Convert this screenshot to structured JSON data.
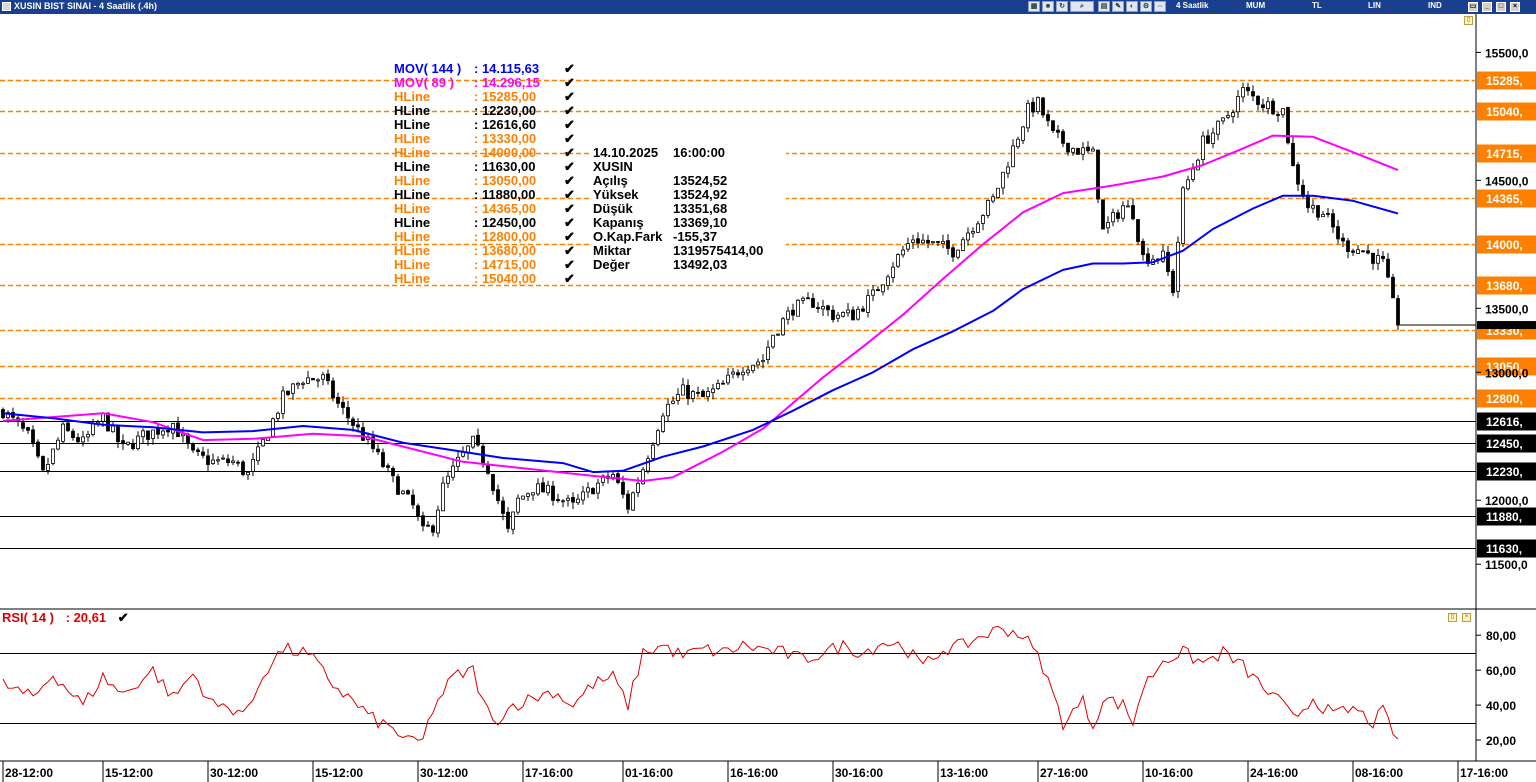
{
  "window": {
    "title": "XUSIN BIST SINAI - 4 Saatlik (.4h)",
    "toolbar": {
      "period": "4 Saatlik",
      "chart_type": "MUM",
      "currency": "TL",
      "scale": "LIN",
      "mode": "IND"
    }
  },
  "main_legend": [
    {
      "name": "MOV( 144 )",
      "value": ": 14.115,63",
      "color": "#0000ff"
    },
    {
      "name": "MOV( 89 )",
      "value": ": 14.296,15",
      "color": "#ff00ff"
    },
    {
      "name": "HLine",
      "value": ": 15285,00",
      "color": "#ff8000"
    },
    {
      "name": "HLine",
      "value": ": 12230,00",
      "color": "#000000"
    },
    {
      "name": "HLine",
      "value": ": 12616,60",
      "color": "#000000"
    },
    {
      "name": "HLine",
      "value": ": 13330,00",
      "color": "#ff8000"
    },
    {
      "name": "HLine",
      "value": ": 14000,00",
      "color": "#ff8000"
    },
    {
      "name": "HLine",
      "value": ": 11630,00",
      "color": "#000000"
    },
    {
      "name": "HLine",
      "value": ": 13050,00",
      "color": "#ff8000"
    },
    {
      "name": "HLine",
      "value": ": 11880,00",
      "color": "#000000"
    },
    {
      "name": "HLine",
      "value": ": 14365,00",
      "color": "#ff8000"
    },
    {
      "name": "HLine",
      "value": ": 12450,00",
      "color": "#000000"
    },
    {
      "name": "HLine",
      "value": ": 12800,00",
      "color": "#ff8000"
    },
    {
      "name": "HLine",
      "value": ": 13680,00",
      "color": "#ff8000"
    },
    {
      "name": "HLine",
      "value": ": 14715,00",
      "color": "#ff8000"
    },
    {
      "name": "HLine",
      "value": ": 15040,00",
      "color": "#ff8000"
    }
  ],
  "checkmark": "✔",
  "info_box": {
    "date": "14.10.2025",
    "time": "16:00:00",
    "symbol": "XUSIN",
    "rows": [
      {
        "label": "Açılış",
        "value": "13524,52"
      },
      {
        "label": "Yüksek",
        "value": "13524,92"
      },
      {
        "label": "Düşük",
        "value": "13351,68"
      },
      {
        "label": "Kapanış",
        "value": "13369,10"
      },
      {
        "label": "O.Kap.Fark",
        "value": "-155,37"
      },
      {
        "label": "Miktar",
        "value": "1319575414,00"
      },
      {
        "label": "Değer",
        "value": "13492,03"
      }
    ]
  },
  "rsi_legend": {
    "name": "RSI( 14 )",
    "value": ": 20,61"
  },
  "chart_data": [
    {
      "type": "candlestick",
      "title": "XUSIN BIST SINAI - 4 Saatlik (.4h)",
      "y_axis": {
        "range": [
          11150,
          15800
        ],
        "ticks": [
          {
            "value": 15500,
            "label": "15500,0"
          },
          {
            "value": 14500,
            "label": "14500,0"
          },
          {
            "value": 13500,
            "label": "13500,0"
          },
          {
            "value": 13000,
            "label": "13000,0"
          },
          {
            "value": 12000,
            "label": "12000,0"
          },
          {
            "value": 11500,
            "label": "11500,0"
          }
        ]
      },
      "x_axis": {
        "count": 295,
        "ticks": [
          {
            "index": 0,
            "label": "28-12:00"
          },
          {
            "index": 20,
            "label": "15-12:00"
          },
          {
            "index": 41,
            "label": "30-12:00"
          },
          {
            "index": 62,
            "label": "15-12:00"
          },
          {
            "index": 83,
            "label": "30-12:00"
          },
          {
            "index": 104,
            "label": "17-16:00"
          },
          {
            "index": 124,
            "label": "01-16:00"
          },
          {
            "index": 145,
            "label": "16-16:00"
          },
          {
            "index": 166,
            "label": "30-16:00"
          },
          {
            "index": 187,
            "label": "13-16:00"
          },
          {
            "index": 207,
            "label": "27-16:00"
          },
          {
            "index": 228,
            "label": "10-16:00"
          },
          {
            "index": 249,
            "label": "24-16:00"
          },
          {
            "index": 270,
            "label": "08-16:00"
          },
          {
            "index": 291,
            "label": "17-16:00"
          }
        ]
      },
      "hlines": [
        {
          "value": 15285,
          "label": "15285,",
          "color": "#ff8000",
          "style": "dashed"
        },
        {
          "value": 15040,
          "label": "15040,",
          "color": "#ff8000",
          "style": "dashed"
        },
        {
          "value": 14715,
          "label": "14715,",
          "color": "#ff8000",
          "style": "dashed"
        },
        {
          "value": 14365,
          "label": "14365,",
          "color": "#ff8000",
          "style": "dashed"
        },
        {
          "value": 14000,
          "label": "14000,",
          "color": "#ff8000",
          "style": "dashed"
        },
        {
          "value": 13680,
          "label": "13680,",
          "color": "#ff8000",
          "style": "dashed"
        },
        {
          "value": 13330,
          "label": "13330,",
          "color": "#ff8000",
          "style": "dashed"
        },
        {
          "value": 13050,
          "label": "13050,",
          "color": "#ff8000",
          "style": "dashed"
        },
        {
          "value": 12800,
          "label": "12800,",
          "color": "#ff8000",
          "style": "dashed"
        },
        {
          "value": 12616.6,
          "label": "12616,",
          "color": "#000000",
          "style": "solid"
        },
        {
          "value": 12450,
          "label": "12450,",
          "color": "#000000",
          "style": "solid"
        },
        {
          "value": 12230,
          "label": "12230,",
          "color": "#000000",
          "style": "solid"
        },
        {
          "value": 11880,
          "label": "11880,",
          "color": "#000000",
          "style": "solid"
        },
        {
          "value": 11630,
          "label": "11630,",
          "color": "#000000",
          "style": "solid"
        }
      ],
      "last_price": 13369.1,
      "anchors": [
        [
          0,
          12700
        ],
        [
          5,
          12500
        ],
        [
          8,
          12200
        ],
        [
          12,
          12550
        ],
        [
          16,
          12450
        ],
        [
          20,
          12650
        ],
        [
          24,
          12400
        ],
        [
          28,
          12500
        ],
        [
          34,
          12600
        ],
        [
          38,
          12350
        ],
        [
          42,
          12300
        ],
        [
          46,
          12300
        ],
        [
          49,
          12200
        ],
        [
          52,
          12450
        ],
        [
          56,
          12800
        ],
        [
          60,
          12950
        ],
        [
          64,
          12950
        ],
        [
          67,
          12750
        ],
        [
          70,
          12600
        ],
        [
          74,
          12400
        ],
        [
          78,
          12150
        ],
        [
          82,
          11950
        ],
        [
          84,
          11750
        ],
        [
          86,
          11800
        ],
        [
          88,
          12100
        ],
        [
          91,
          12300
        ],
        [
          94,
          12450
        ],
        [
          97,
          12250
        ],
        [
          99,
          12000
        ],
        [
          101,
          11750
        ],
        [
          103,
          12000
        ],
        [
          106,
          12100
        ],
        [
          110,
          12050
        ],
        [
          114,
          11950
        ],
        [
          118,
          12100
        ],
        [
          122,
          12200
        ],
        [
          125,
          11950
        ],
        [
          128,
          12250
        ],
        [
          132,
          12700
        ],
        [
          136,
          12850
        ],
        [
          140,
          12800
        ],
        [
          144,
          12900
        ],
        [
          148,
          13050
        ],
        [
          152,
          13100
        ],
        [
          154,
          13300
        ],
        [
          158,
          13500
        ],
        [
          162,
          13550
        ],
        [
          166,
          13450
        ],
        [
          170,
          13450
        ],
        [
          174,
          13600
        ],
        [
          178,
          13850
        ],
        [
          182,
          14050
        ],
        [
          186,
          14000
        ],
        [
          190,
          13950
        ],
        [
          194,
          14150
        ],
        [
          198,
          14350
        ],
        [
          202,
          14750
        ],
        [
          205,
          15050
        ],
        [
          207,
          15100
        ],
        [
          210,
          14850
        ],
        [
          214,
          14750
        ],
        [
          218,
          14700
        ],
        [
          220,
          14100
        ],
        [
          222,
          14200
        ],
        [
          224,
          14300
        ],
        [
          226,
          14250
        ],
        [
          228,
          13900
        ],
        [
          232,
          13900
        ],
        [
          234,
          13650
        ],
        [
          236,
          14400
        ],
        [
          240,
          14800
        ],
        [
          244,
          14950
        ],
        [
          248,
          15200
        ],
        [
          252,
          15100
        ],
        [
          256,
          15050
        ],
        [
          258,
          14600
        ],
        [
          261,
          14300
        ],
        [
          264,
          14250
        ],
        [
          268,
          14000
        ],
        [
          272,
          13950
        ],
        [
          276,
          13850
        ],
        [
          279,
          13369.1
        ]
      ],
      "ma89": {
        "name": "MOV( 89 )",
        "color": "#ff00ff",
        "points": [
          [
            0,
            12620
          ],
          [
            20,
            12680
          ],
          [
            30,
            12610
          ],
          [
            40,
            12470
          ],
          [
            50,
            12480
          ],
          [
            62,
            12520
          ],
          [
            72,
            12500
          ],
          [
            82,
            12400
          ],
          [
            92,
            12300
          ],
          [
            104,
            12250
          ],
          [
            118,
            12190
          ],
          [
            128,
            12150
          ],
          [
            134,
            12180
          ],
          [
            144,
            12380
          ],
          [
            152,
            12560
          ],
          [
            158,
            12760
          ],
          [
            164,
            12960
          ],
          [
            172,
            13200
          ],
          [
            180,
            13450
          ],
          [
            188,
            13730
          ],
          [
            196,
            14000
          ],
          [
            204,
            14250
          ],
          [
            212,
            14400
          ],
          [
            222,
            14460
          ],
          [
            232,
            14530
          ],
          [
            240,
            14620
          ],
          [
            248,
            14750
          ],
          [
            254,
            14850
          ],
          [
            262,
            14840
          ],
          [
            270,
            14720
          ],
          [
            279,
            14580
          ]
        ]
      },
      "ma144": {
        "name": "MOV( 144 )",
        "color": "#0000ff",
        "points": [
          [
            0,
            12680
          ],
          [
            10,
            12640
          ],
          [
            20,
            12590
          ],
          [
            30,
            12570
          ],
          [
            40,
            12530
          ],
          [
            50,
            12540
          ],
          [
            60,
            12580
          ],
          [
            70,
            12550
          ],
          [
            80,
            12450
          ],
          [
            90,
            12390
          ],
          [
            100,
            12330
          ],
          [
            112,
            12290
          ],
          [
            118,
            12220
          ],
          [
            124,
            12230
          ],
          [
            132,
            12340
          ],
          [
            140,
            12420
          ],
          [
            150,
            12550
          ],
          [
            158,
            12700
          ],
          [
            166,
            12860
          ],
          [
            174,
            13000
          ],
          [
            182,
            13180
          ],
          [
            190,
            13320
          ],
          [
            198,
            13480
          ],
          [
            204,
            13650
          ],
          [
            212,
            13800
          ],
          [
            218,
            13850
          ],
          [
            224,
            13850
          ],
          [
            230,
            13860
          ],
          [
            236,
            13950
          ],
          [
            242,
            14120
          ],
          [
            250,
            14280
          ],
          [
            256,
            14380
          ],
          [
            262,
            14380
          ],
          [
            270,
            14340
          ],
          [
            279,
            14240
          ]
        ]
      }
    },
    {
      "type": "line",
      "title": "RSI( 14 )",
      "color": "#e00000",
      "y_axis": {
        "range": [
          8,
          95
        ],
        "ticks": [
          {
            "value": 80,
            "label": "80,00"
          },
          {
            "value": 60,
            "label": "60,00"
          },
          {
            "value": 40,
            "label": "40,00"
          },
          {
            "value": 20,
            "label": "20,00"
          }
        ]
      },
      "hlines": [
        70,
        30
      ],
      "last_value": 20.61,
      "anchors": [
        [
          0,
          52
        ],
        [
          6,
          44
        ],
        [
          10,
          58
        ],
        [
          16,
          40
        ],
        [
          20,
          56
        ],
        [
          24,
          46
        ],
        [
          30,
          60
        ],
        [
          34,
          44
        ],
        [
          38,
          58
        ],
        [
          42,
          40
        ],
        [
          46,
          38
        ],
        [
          49,
          36
        ],
        [
          52,
          58
        ],
        [
          56,
          72
        ],
        [
          60,
          70
        ],
        [
          62,
          66
        ],
        [
          66,
          52
        ],
        [
          70,
          42
        ],
        [
          74,
          32
        ],
        [
          78,
          26
        ],
        [
          82,
          18
        ],
        [
          84,
          20
        ],
        [
          86,
          38
        ],
        [
          90,
          56
        ],
        [
          94,
          60
        ],
        [
          96,
          42
        ],
        [
          98,
          30
        ],
        [
          102,
          40
        ],
        [
          106,
          44
        ],
        [
          110,
          48
        ],
        [
          114,
          40
        ],
        [
          118,
          52
        ],
        [
          122,
          56
        ],
        [
          125,
          40
        ],
        [
          128,
          70
        ],
        [
          132,
          74
        ],
        [
          136,
          68
        ],
        [
          140,
          72
        ],
        [
          144,
          70
        ],
        [
          148,
          74
        ],
        [
          152,
          72
        ],
        [
          156,
          70
        ],
        [
          160,
          66
        ],
        [
          164,
          70
        ],
        [
          168,
          74
        ],
        [
          172,
          70
        ],
        [
          176,
          76
        ],
        [
          180,
          74
        ],
        [
          184,
          62
        ],
        [
          188,
          72
        ],
        [
          192,
          74
        ],
        [
          196,
          80
        ],
        [
          200,
          84
        ],
        [
          204,
          80
        ],
        [
          206,
          72
        ],
        [
          208,
          62
        ],
        [
          210,
          46
        ],
        [
          212,
          30
        ],
        [
          216,
          42
        ],
        [
          218,
          28
        ],
        [
          220,
          44
        ],
        [
          224,
          40
        ],
        [
          226,
          30
        ],
        [
          228,
          50
        ],
        [
          232,
          66
        ],
        [
          236,
          70
        ],
        [
          240,
          64
        ],
        [
          244,
          70
        ],
        [
          248,
          62
        ],
        [
          252,
          50
        ],
        [
          256,
          40
        ],
        [
          258,
          32
        ],
        [
          262,
          44
        ],
        [
          266,
          34
        ],
        [
          270,
          38
        ],
        [
          274,
          30
        ],
        [
          276,
          36
        ],
        [
          279,
          20.61
        ]
      ]
    }
  ]
}
